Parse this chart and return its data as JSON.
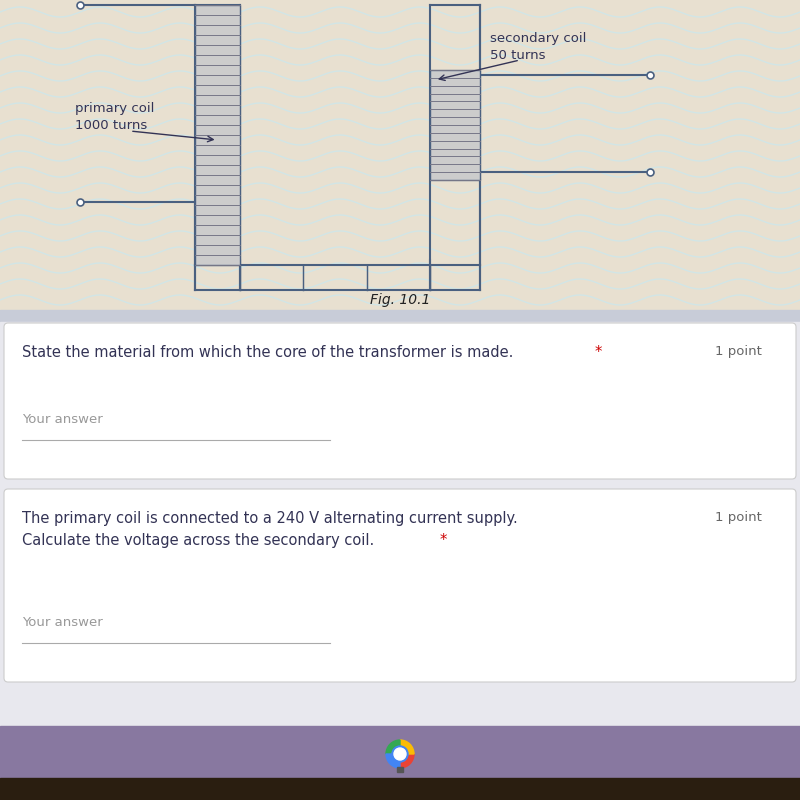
{
  "bg_diagram": "#e8e0d0",
  "bg_wavy_color": "#c8e8f0",
  "bg_gap": "#c8ccd8",
  "bg_card": "#ffffff",
  "bg_bottom_bar": "#8878a0",
  "bg_dark_bottom": "#2a1e10",
  "fig_caption": "Fig. 10.1",
  "primary_label_line1": "primary coil",
  "primary_label_line2": "1000 turns",
  "secondary_label_line1": "secondary coil",
  "secondary_label_line2": "50 turns",
  "question1_text": "State the material from which the core of the transformer is made. *",
  "question1_points": "1 point",
  "question1_answer_placeholder": "Your answer",
  "question2_line1": "The primary coil is connected to a 240 V alternating current supply.",
  "question2_line2": "Calculate the voltage across the secondary coil. *",
  "question2_points": "1 point",
  "question2_answer_placeholder": "Your answer",
  "line_color": "#4a6080",
  "coil_fill": "#b8b8c8",
  "coil_line": "#444455",
  "text_color": "#222222",
  "text_color_dark": "#333355",
  "placeholder_color": "#999999",
  "points_color": "#666666",
  "star_color": "#cc0000",
  "card_border": "#dddddd"
}
